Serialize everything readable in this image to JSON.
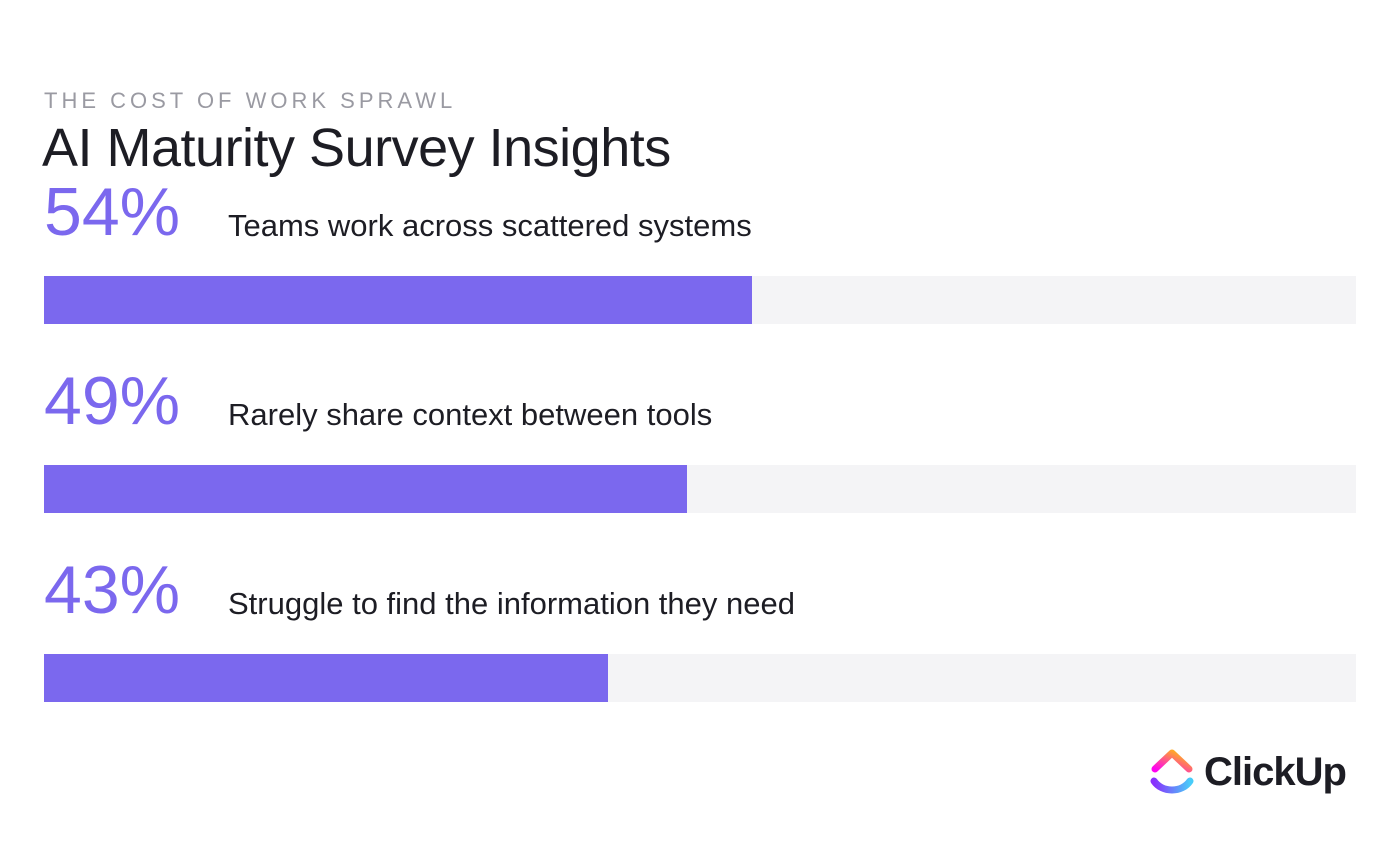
{
  "header": {
    "eyebrow": "THE COST OF WORK SPRAWL",
    "title": "AI Maturity Survey Insights"
  },
  "brand": {
    "name": "ClickUp",
    "logo_icon": "clickup-logo-icon",
    "accent_color": "#7b68ee",
    "track_color": "#f4f4f6"
  },
  "chart_data": {
    "type": "bar",
    "orientation": "horizontal",
    "title": "AI Maturity Survey Insights",
    "subtitle": "THE COST OF WORK SPRAWL",
    "xlim": [
      0,
      100
    ],
    "grid": false,
    "legend": "none",
    "categories": [
      "Teams work across scattered systems",
      "Rarely share context between tools",
      "Struggle to find the information they need"
    ],
    "values": [
      54,
      49,
      43
    ],
    "value_labels": [
      "54%",
      "49%",
      "43%"
    ]
  }
}
